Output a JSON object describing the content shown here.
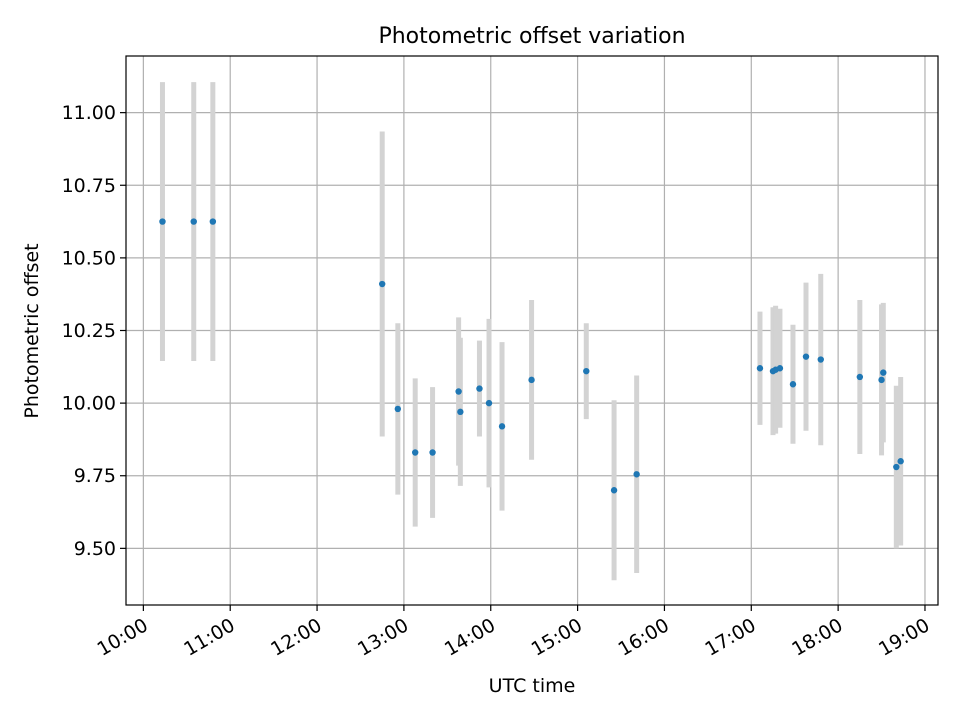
{
  "chart_data": {
    "type": "scatter",
    "title": "Photometric offset variation",
    "xlabel": "UTC time",
    "ylabel": "Photometric offset",
    "x_unit": "hour",
    "xlim": [
      9.8,
      19.15
    ],
    "ylim": [
      9.305,
      11.195
    ],
    "grid": true,
    "x_ticks": [
      {
        "value": 10,
        "label": "10:00"
      },
      {
        "value": 11,
        "label": "11:00"
      },
      {
        "value": 12,
        "label": "12:00"
      },
      {
        "value": 13,
        "label": "13:00"
      },
      {
        "value": 14,
        "label": "14:00"
      },
      {
        "value": 15,
        "label": "15:00"
      },
      {
        "value": 16,
        "label": "16:00"
      },
      {
        "value": 17,
        "label": "17:00"
      },
      {
        "value": 18,
        "label": "18:00"
      },
      {
        "value": 19,
        "label": "19:00"
      }
    ],
    "y_ticks": [
      {
        "value": 9.5,
        "label": "9.50"
      },
      {
        "value": 9.75,
        "label": "9.75"
      },
      {
        "value": 10.0,
        "label": "10.00"
      },
      {
        "value": 10.25,
        "label": "10.25"
      },
      {
        "value": 10.5,
        "label": "10.50"
      },
      {
        "value": 10.75,
        "label": "10.75"
      },
      {
        "value": 11.0,
        "label": "11.00"
      }
    ],
    "colors": {
      "point": "#1f77b4",
      "errorbar": "#d3d3d3",
      "grid": "#b0b0b0"
    },
    "points": [
      {
        "x": 10.22,
        "y": 10.625,
        "err": 0.48
      },
      {
        "x": 10.58,
        "y": 10.625,
        "err": 0.48
      },
      {
        "x": 10.8,
        "y": 10.625,
        "err": 0.48
      },
      {
        "x": 12.75,
        "y": 10.41,
        "err": 0.525
      },
      {
        "x": 12.93,
        "y": 9.98,
        "err": 0.295
      },
      {
        "x": 13.13,
        "y": 9.83,
        "err": 0.255
      },
      {
        "x": 13.33,
        "y": 9.83,
        "err": 0.225
      },
      {
        "x": 13.63,
        "y": 10.04,
        "err": 0.255
      },
      {
        "x": 13.65,
        "y": 9.97,
        "err": 0.255
      },
      {
        "x": 13.87,
        "y": 10.05,
        "err": 0.165
      },
      {
        "x": 13.98,
        "y": 10.0,
        "err": 0.29
      },
      {
        "x": 14.13,
        "y": 9.92,
        "err": 0.29
      },
      {
        "x": 14.47,
        "y": 10.08,
        "err": 0.275
      },
      {
        "x": 15.1,
        "y": 10.11,
        "err": 0.165
      },
      {
        "x": 15.42,
        "y": 9.7,
        "err": 0.31
      },
      {
        "x": 15.68,
        "y": 9.755,
        "err": 0.34
      },
      {
        "x": 17.1,
        "y": 10.12,
        "err": 0.195
      },
      {
        "x": 17.25,
        "y": 10.11,
        "err": 0.22
      },
      {
        "x": 17.28,
        "y": 10.115,
        "err": 0.22
      },
      {
        "x": 17.33,
        "y": 10.12,
        "err": 0.205
      },
      {
        "x": 17.48,
        "y": 10.065,
        "err": 0.205
      },
      {
        "x": 17.63,
        "y": 10.16,
        "err": 0.255
      },
      {
        "x": 17.8,
        "y": 10.15,
        "err": 0.295
      },
      {
        "x": 18.25,
        "y": 10.09,
        "err": 0.265
      },
      {
        "x": 18.5,
        "y": 10.08,
        "err": 0.26
      },
      {
        "x": 18.52,
        "y": 10.105,
        "err": 0.24
      },
      {
        "x": 18.67,
        "y": 9.78,
        "err": 0.28
      },
      {
        "x": 18.72,
        "y": 9.8,
        "err": 0.29
      }
    ]
  }
}
